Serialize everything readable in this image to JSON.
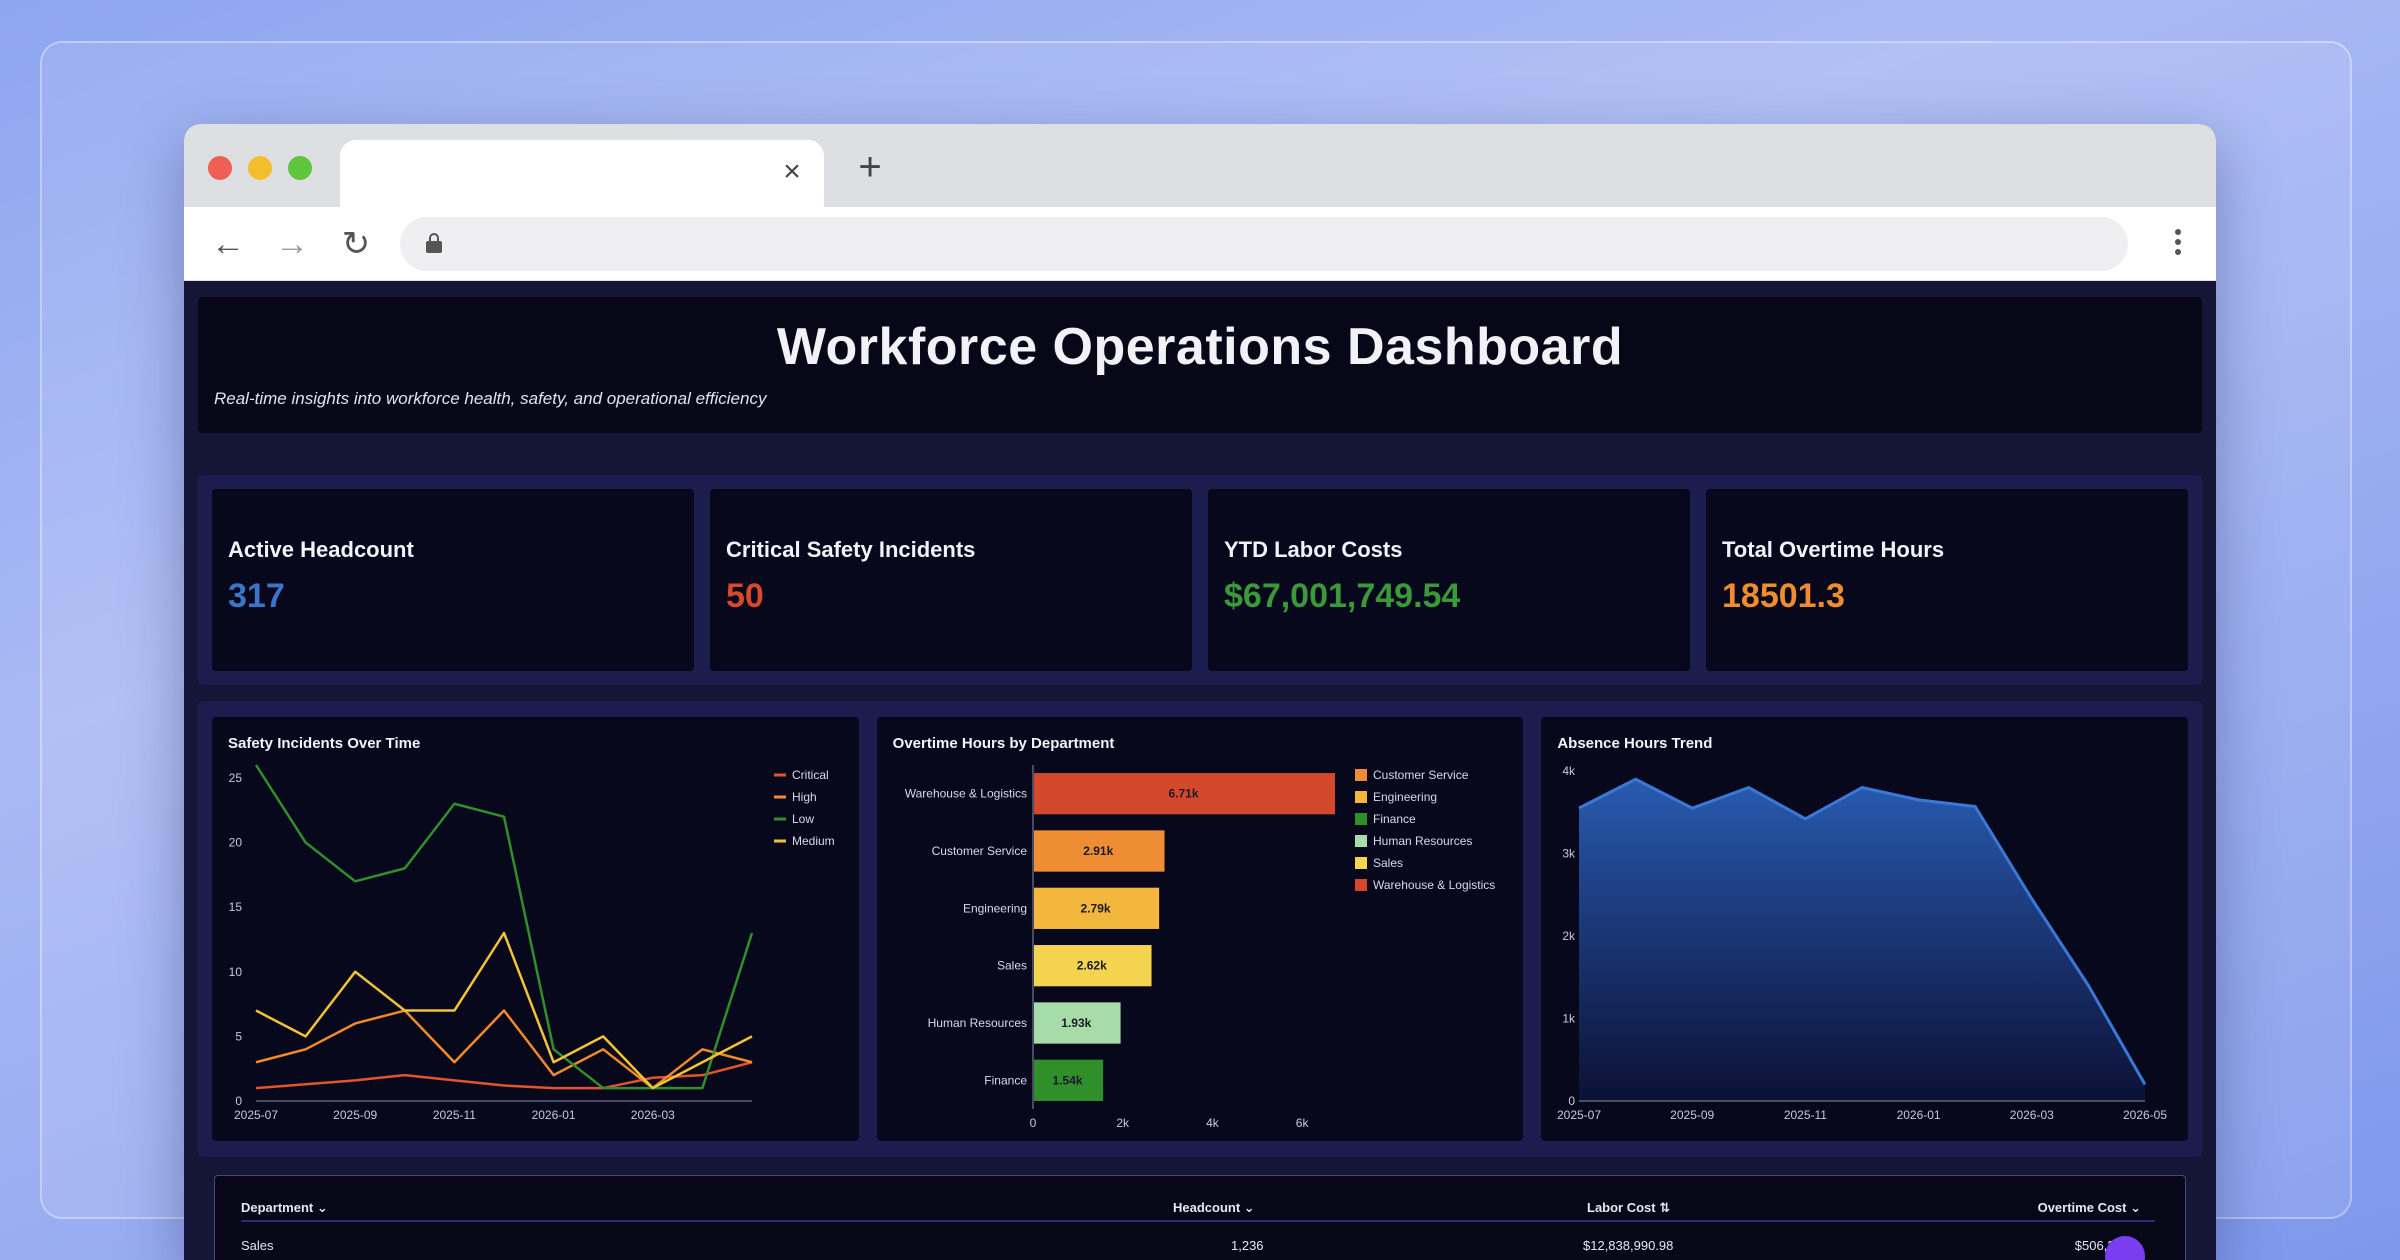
{
  "page": {
    "title": "Workforce Operations Dashboard",
    "subtitle": "Real-time insights into workforce health, safety, and operational efficiency"
  },
  "browser": {
    "tab_close_icon": "close-icon",
    "new_tab_icon": "plus-icon",
    "address_value": ""
  },
  "colors": {
    "headcount": "#3b75c9",
    "critical": "#d9482b",
    "labor": "#3a9a3a",
    "overtime": "#ef8c2f"
  },
  "kpis": [
    {
      "label": "Active Headcount",
      "value": "317"
    },
    {
      "label": "Critical Safety Incidents",
      "value": "50"
    },
    {
      "label": "YTD Labor Costs",
      "value": "$67,001,749.54"
    },
    {
      "label": "Total Overtime Hours",
      "value": "18501.3"
    }
  ],
  "chart_data": [
    {
      "type": "line",
      "title": "Safety Incidents Over Time",
      "x": [
        "2025-07",
        "2025-08",
        "2025-09",
        "2025-10",
        "2025-11",
        "2025-12",
        "2026-01",
        "2026-02",
        "2026-03",
        "2026-04",
        "2026-05"
      ],
      "xticks": [
        "2025-07",
        "2025-09",
        "2025-11",
        "2026-01",
        "2026-03"
      ],
      "yticks": [
        0,
        5,
        10,
        15,
        20,
        25
      ],
      "ylim": [
        0,
        26
      ],
      "legend_position": "top-right",
      "series": [
        {
          "name": "Critical",
          "color": "#e2542d",
          "values": [
            1,
            1.3,
            1.6,
            2,
            1.6,
            1.2,
            1,
            1,
            1.8,
            2,
            3
          ]
        },
        {
          "name": "High",
          "color": "#f08a2b",
          "values": [
            3,
            4,
            6,
            7,
            3,
            7,
            2,
            4,
            1,
            4,
            3
          ]
        },
        {
          "name": "Low",
          "color": "#2f8f2a",
          "values": [
            26,
            20,
            17,
            18,
            23,
            22,
            4,
            1,
            1,
            1,
            13
          ]
        },
        {
          "name": "Medium",
          "color": "#f2c33a",
          "values": [
            7,
            5,
            10,
            7,
            7,
            13,
            3,
            5,
            1,
            3,
            5
          ]
        }
      ]
    },
    {
      "type": "bar",
      "orientation": "horizontal",
      "title": "Overtime Hours by Department",
      "categories": [
        "Warehouse & Logistics",
        "Customer Service",
        "Engineering",
        "Sales",
        "Human Resources",
        "Finance"
      ],
      "values": [
        6710,
        2910,
        2790,
        2620,
        1930,
        1540
      ],
      "data_labels": [
        "6.71k",
        "2.91k",
        "2.79k",
        "2.62k",
        "1.93k",
        "1.54k"
      ],
      "colors": [
        "#d3482a",
        "#ee8d33",
        "#f3b73d",
        "#f4d34f",
        "#a7dba8",
        "#2f8f2a"
      ],
      "xticks": [
        "0",
        "2k",
        "4k",
        "6k"
      ],
      "xtick_values": [
        0,
        2000,
        4000,
        6000
      ],
      "xlim": [
        0,
        7000
      ],
      "legend_position": "right",
      "legend": [
        {
          "name": "Customer Service",
          "color": "#ee8d33"
        },
        {
          "name": "Engineering",
          "color": "#f3b73d"
        },
        {
          "name": "Finance",
          "color": "#2f8f2a"
        },
        {
          "name": "Human Resources",
          "color": "#a7dba8"
        },
        {
          "name": "Sales",
          "color": "#f4d34f"
        },
        {
          "name": "Warehouse & Logistics",
          "color": "#d3482a"
        }
      ]
    },
    {
      "type": "area",
      "title": "Absence Hours Trend",
      "x": [
        "2025-07",
        "2025-08",
        "2025-09",
        "2025-10",
        "2025-11",
        "2025-12",
        "2026-01",
        "2026-02",
        "2026-03",
        "2026-04",
        "2026-05"
      ],
      "xticks": [
        "2025-07",
        "2025-09",
        "2025-11",
        "2026-01",
        "2026-03",
        "2026-05"
      ],
      "yticks": [
        "0",
        "1k",
        "2k",
        "3k",
        "4k"
      ],
      "ytick_values": [
        0,
        1000,
        2000,
        3000,
        4000
      ],
      "ylim": [
        0,
        4000
      ],
      "color": "#3a78d8",
      "values": [
        3550,
        3900,
        3550,
        3800,
        3420,
        3800,
        3650,
        3570,
        2450,
        1400,
        200
      ]
    }
  ],
  "table": {
    "columns": [
      {
        "label": "Department",
        "icon": "chevron-down-icon"
      },
      {
        "label": "Headcount",
        "icon": "chevron-down-icon"
      },
      {
        "label": "Labor Cost",
        "icon": "sort-icon"
      },
      {
        "label": "Overtime Cost",
        "icon": "chevron-down-icon"
      }
    ],
    "rows": [
      {
        "department": "Sales",
        "headcount": "1,236",
        "labor_cost": "$12,838,990.98",
        "overtime_cost": "$506,264"
      }
    ]
  }
}
